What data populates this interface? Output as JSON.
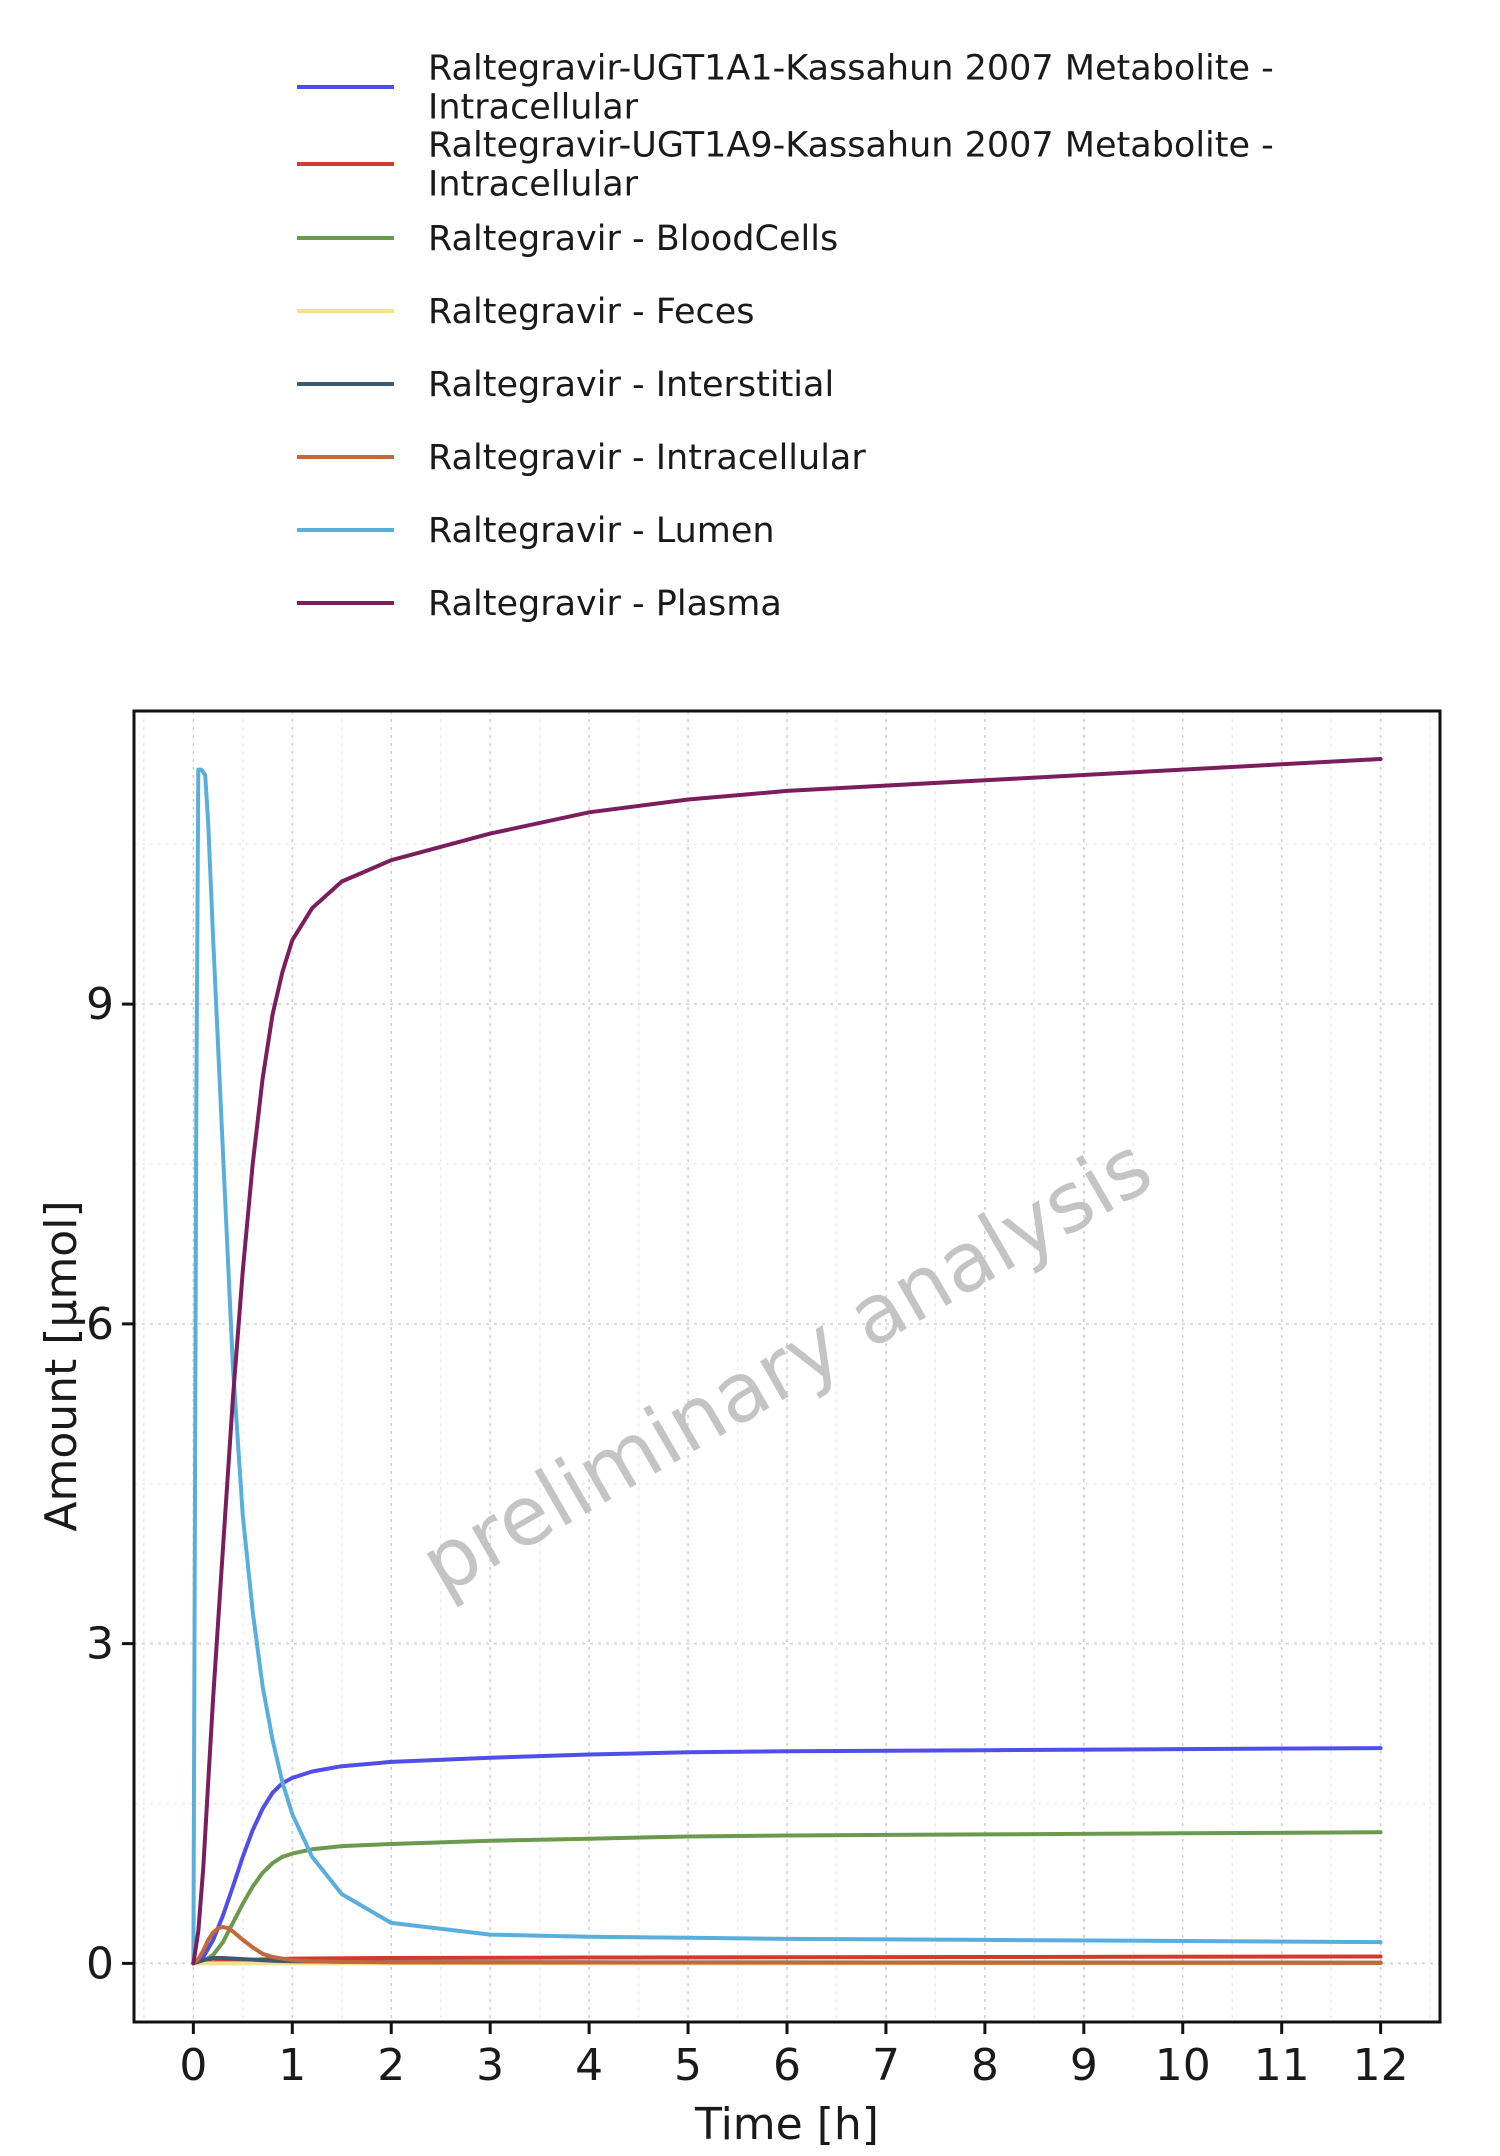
{
  "chart_data": {
    "type": "line",
    "title": "",
    "xlabel": "Time [h]",
    "ylabel": "Amount [µmol]",
    "xlim": [
      -0.6,
      12.6
    ],
    "ylim": [
      -0.55,
      11.75
    ],
    "x_ticks": [
      0,
      1,
      2,
      3,
      4,
      5,
      6,
      7,
      8,
      9,
      10,
      11,
      12
    ],
    "y_ticks": [
      0,
      3,
      6,
      9
    ],
    "grid": true,
    "legend_position": "top",
    "watermark": "preliminary analysis",
    "series": [
      {
        "name": "Raltegravir-UGT1A1-Kassahun 2007 Metabolite - Intracellular",
        "name_lines": [
          "Raltegravir-UGT1A1-Kassahun 2007 Metabolite -",
          "Intracellular"
        ],
        "color": "#4F4FE8",
        "x": [
          0,
          0.1,
          0.2,
          0.3,
          0.4,
          0.5,
          0.6,
          0.7,
          0.8,
          0.9,
          1.0,
          1.2,
          1.5,
          2.0,
          3.0,
          4.0,
          5.0,
          6.0,
          8.0,
          10.0,
          12.0
        ],
        "y": [
          0,
          0.06,
          0.22,
          0.45,
          0.72,
          1.0,
          1.25,
          1.45,
          1.6,
          1.69,
          1.74,
          1.8,
          1.85,
          1.89,
          1.93,
          1.96,
          1.98,
          1.99,
          2.0,
          2.01,
          2.02
        ]
      },
      {
        "name": "Raltegravir-UGT1A9-Kassahun 2007 Metabolite - Intracellular",
        "name_lines": [
          "Raltegravir-UGT1A9-Kassahun 2007 Metabolite -",
          "Intracellular"
        ],
        "color": "#D03A2F",
        "x": [
          0,
          0.2,
          0.4,
          0.6,
          1.0,
          2.0,
          4.0,
          8.0,
          12.0
        ],
        "y": [
          0,
          0.01,
          0.025,
          0.035,
          0.045,
          0.05,
          0.055,
          0.06,
          0.065
        ]
      },
      {
        "name": "Raltegravir - BloodCells",
        "name_lines": [
          "Raltegravir - BloodCells"
        ],
        "color": "#6A9A4E",
        "x": [
          0,
          0.1,
          0.2,
          0.3,
          0.4,
          0.5,
          0.6,
          0.7,
          0.8,
          0.9,
          1.0,
          1.2,
          1.5,
          2.0,
          3.0,
          4.0,
          5.0,
          6.0,
          8.0,
          10.0,
          12.0
        ],
        "y": [
          0,
          0.02,
          0.08,
          0.2,
          0.38,
          0.56,
          0.72,
          0.85,
          0.94,
          1.0,
          1.03,
          1.07,
          1.1,
          1.12,
          1.15,
          1.17,
          1.19,
          1.2,
          1.21,
          1.22,
          1.23
        ]
      },
      {
        "name": "Raltegravir - Feces",
        "name_lines": [
          "Raltegravir - Feces"
        ],
        "color": "#F2E38A",
        "x": [
          0,
          1,
          2,
          4,
          8,
          12
        ],
        "y": [
          0,
          0,
          0,
          0,
          0,
          0
        ]
      },
      {
        "name": "Raltegravir - Interstitial",
        "name_lines": [
          "Raltegravir - Interstitial"
        ],
        "color": "#3E5A73",
        "x": [
          0,
          0.1,
          0.2,
          0.3,
          0.5,
          0.8,
          1.0,
          1.5,
          2.0,
          4.0,
          8.0,
          12.0
        ],
        "y": [
          0,
          0.03,
          0.05,
          0.05,
          0.04,
          0.025,
          0.02,
          0.015,
          0.012,
          0.01,
          0.008,
          0.006
        ]
      },
      {
        "name": "Raltegravir - Intracellular",
        "name_lines": [
          "Raltegravir - Intracellular"
        ],
        "color": "#C2683A",
        "x": [
          0,
          0.05,
          0.1,
          0.15,
          0.2,
          0.25,
          0.3,
          0.35,
          0.4,
          0.45,
          0.5,
          0.6,
          0.7,
          0.8,
          1.0,
          1.2,
          1.5,
          2.0,
          4.0,
          8.0,
          12.0
        ],
        "y": [
          0,
          0.04,
          0.12,
          0.22,
          0.29,
          0.33,
          0.34,
          0.33,
          0.3,
          0.26,
          0.22,
          0.15,
          0.09,
          0.06,
          0.03,
          0.02,
          0.015,
          0.01,
          0.008,
          0.006,
          0.005
        ]
      },
      {
        "name": "Raltegravir - Lumen",
        "name_lines": [
          "Raltegravir - Lumen"
        ],
        "color": "#5AAEDC",
        "x": [
          0,
          0.03,
          0.05,
          0.08,
          0.12,
          0.15,
          0.2,
          0.3,
          0.4,
          0.5,
          0.6,
          0.7,
          0.8,
          0.9,
          1.0,
          1.2,
          1.5,
          2.0,
          3.0,
          4.0,
          5.0,
          6.0,
          8.0,
          10.0,
          12.0
        ],
        "y": [
          0,
          8.0,
          11.2,
          11.2,
          11.15,
          10.7,
          9.6,
          7.6,
          5.6,
          4.2,
          3.3,
          2.6,
          2.1,
          1.7,
          1.4,
          1.0,
          0.65,
          0.38,
          0.27,
          0.25,
          0.24,
          0.23,
          0.22,
          0.21,
          0.2
        ]
      },
      {
        "name": "Raltegravir - Plasma",
        "name_lines": [
          "Raltegravir - Plasma"
        ],
        "color": "#7B1E5E",
        "x": [
          0,
          0.05,
          0.1,
          0.15,
          0.2,
          0.3,
          0.4,
          0.5,
          0.6,
          0.7,
          0.8,
          0.9,
          1.0,
          1.2,
          1.5,
          2.0,
          3.0,
          4.0,
          5.0,
          6.0,
          8.0,
          10.0,
          12.0
        ],
        "y": [
          0,
          0.3,
          0.9,
          1.7,
          2.5,
          3.9,
          5.3,
          6.5,
          7.5,
          8.3,
          8.9,
          9.3,
          9.6,
          9.9,
          10.15,
          10.35,
          10.6,
          10.8,
          10.92,
          11.0,
          11.1,
          11.2,
          11.3
        ]
      }
    ]
  }
}
